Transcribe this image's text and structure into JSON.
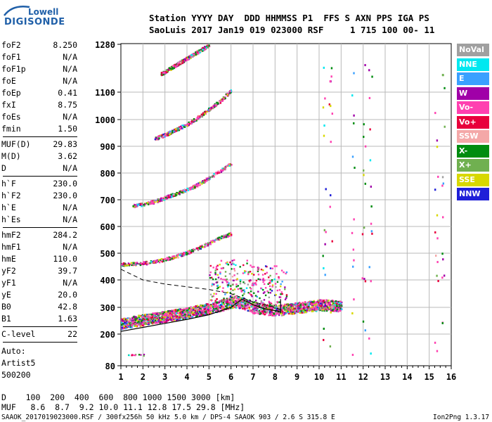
{
  "logo": {
    "line1": "Lowell",
    "line2": "DIGISONDE"
  },
  "header": {
    "row1": "Station YYYY DAY  DDD HHMMSS P1  FFS S AXN PPS IGA PS",
    "row2": "SaoLuis 2017 Jan19 019 023000 RSF     1 715 100 00- 11"
  },
  "params_group1": [
    {
      "name": "foF2",
      "value": "8.250"
    },
    {
      "name": "foF1",
      "value": "N/A"
    },
    {
      "name": "foF1p",
      "value": "N/A"
    },
    {
      "name": "foE",
      "value": "N/A"
    },
    {
      "name": "foEp",
      "value": "0.41"
    },
    {
      "name": "fxI",
      "value": "8.75"
    },
    {
      "name": "foEs",
      "value": "N/A"
    },
    {
      "name": "fmin",
      "value": "1.50"
    }
  ],
  "params_group2": [
    {
      "name": "MUF(D)",
      "value": "29.83"
    },
    {
      "name": "M(D)",
      "value": "3.62"
    },
    {
      "name": "D",
      "value": "N/A"
    }
  ],
  "params_group3": [
    {
      "name": "h`F",
      "value": "230.0"
    },
    {
      "name": "h`F2",
      "value": "230.0"
    },
    {
      "name": "h`E",
      "value": "N/A"
    },
    {
      "name": "h`Es",
      "value": "N/A"
    }
  ],
  "params_group4": [
    {
      "name": "hmF2",
      "value": "284.2"
    },
    {
      "name": "hmF1",
      "value": "N/A"
    },
    {
      "name": "hmE",
      "value": "110.0"
    },
    {
      "name": "yF2",
      "value": "39.7"
    },
    {
      "name": "yF1",
      "value": "N/A"
    },
    {
      "name": "yE",
      "value": "20.0"
    },
    {
      "name": "B0",
      "value": "42.8"
    },
    {
      "name": "B1",
      "value": "1.63"
    }
  ],
  "params_group5": [
    {
      "name": "C-level",
      "value": "22"
    }
  ],
  "auto_block": [
    "Auto:",
    "Artist5",
    "500200"
  ],
  "legend": [
    {
      "label": "NoVal",
      "color": "#a0a0a0"
    },
    {
      "label": "NNE",
      "color": "#00e8f0"
    },
    {
      "label": "E",
      "color": "#3aa0ff"
    },
    {
      "label": "W",
      "color": "#a000a8"
    },
    {
      "label": "Vo-",
      "color": "#ff40b0"
    },
    {
      "label": "Vo+",
      "color": "#e8003c"
    },
    {
      "label": "SSW",
      "color": "#f4a8a8"
    },
    {
      "label": "X-",
      "color": "#008c10"
    },
    {
      "label": "X+",
      "color": "#70b050"
    },
    {
      "label": "SSE",
      "color": "#d8d800"
    },
    {
      "label": "NNW",
      "color": "#2020d8"
    }
  ],
  "chart_data": {
    "type": "scatter",
    "xlim": [
      1,
      16
    ],
    "ylim": [
      80,
      1280
    ],
    "x_ticks": [
      "1",
      "2",
      "3",
      "4",
      "5",
      "6",
      "7",
      "8",
      "9",
      "10",
      "11",
      "12",
      "13",
      "14",
      "15",
      "16"
    ],
    "y_ticks": [
      "80",
      "200",
      "300",
      "400",
      "500",
      "600",
      "700",
      "800",
      "900",
      "1000",
      "1100",
      "1280"
    ],
    "grid": true,
    "traces": [
      {
        "name": "1-hop",
        "x": [
          1.0,
          1.6,
          2.0,
          2.5,
          3.0,
          3.5,
          4.0,
          4.5,
          5.0,
          5.5,
          6.0,
          6.5,
          7.0,
          7.5,
          8.0,
          8.5,
          9.0,
          9.5,
          10.0,
          10.5,
          11.0
        ],
        "y": [
          240,
          250,
          255,
          262,
          268,
          275,
          282,
          290,
          298,
          308,
          320,
          318,
          300,
          295,
          290,
          295,
          300,
          305,
          310,
          310,
          305
        ]
      },
      {
        "name": "2-hop",
        "x": [
          1.0,
          1.5,
          2.0,
          2.5,
          3.0,
          3.5,
          4.0,
          4.5,
          5.0,
          5.5,
          6.0
        ],
        "y": [
          460,
          462,
          465,
          470,
          480,
          490,
          505,
          520,
          540,
          560,
          575
        ]
      },
      {
        "name": "3-hop",
        "x": [
          1.5,
          2.0,
          2.5,
          3.0,
          3.5,
          4.0,
          4.5,
          5.0,
          5.5,
          6.0
        ],
        "y": [
          680,
          685,
          695,
          710,
          725,
          740,
          760,
          785,
          810,
          840
        ]
      },
      {
        "name": "4-hop",
        "x": [
          2.5,
          3.0,
          3.5,
          4.0,
          4.5,
          5.0,
          5.5,
          6.0
        ],
        "y": [
          930,
          945,
          965,
          985,
          1010,
          1040,
          1070,
          1110
        ]
      },
      {
        "name": "5-hop",
        "x": [
          2.8,
          3.2,
          3.6,
          4.0,
          4.4,
          4.8,
          5.0
        ],
        "y": [
          1170,
          1190,
          1210,
          1230,
          1250,
          1270,
          1280
        ]
      }
    ],
    "profile_solid": {
      "x": [
        1.0,
        2.0,
        3.0,
        4.0,
        5.0,
        6.0,
        6.5,
        7.0,
        7.5,
        8.0,
        8.25
      ],
      "y": [
        210,
        225,
        240,
        255,
        272,
        300,
        330,
        310,
        295,
        288,
        284
      ]
    },
    "profile_dashed": {
      "x": [
        1.0,
        1.5,
        2.0,
        3.0,
        4.0,
        5.0,
        6.0,
        7.0,
        8.0,
        8.25
      ],
      "y": [
        440,
        420,
        400,
        385,
        375,
        365,
        350,
        320,
        300,
        290
      ]
    },
    "vertical_marker": {
      "x": 8.25,
      "y": [
        280,
        330
      ]
    }
  },
  "footer": {
    "d_row": "D    100  200  400  600  800 1000 1500 3000 [km]",
    "muf_row": "MUF   8.6  8.7  9.2 10.0 11.1 12.8 17.5 29.8 [MHz]",
    "file_row": "SAAOK_2017019023000.RSF / 300fx256h 50 kHz 5.0 km / DPS-4 SAAOK 903 / 2.6 S 315.8 E",
    "version": "Ion2Png 1.3.17"
  }
}
